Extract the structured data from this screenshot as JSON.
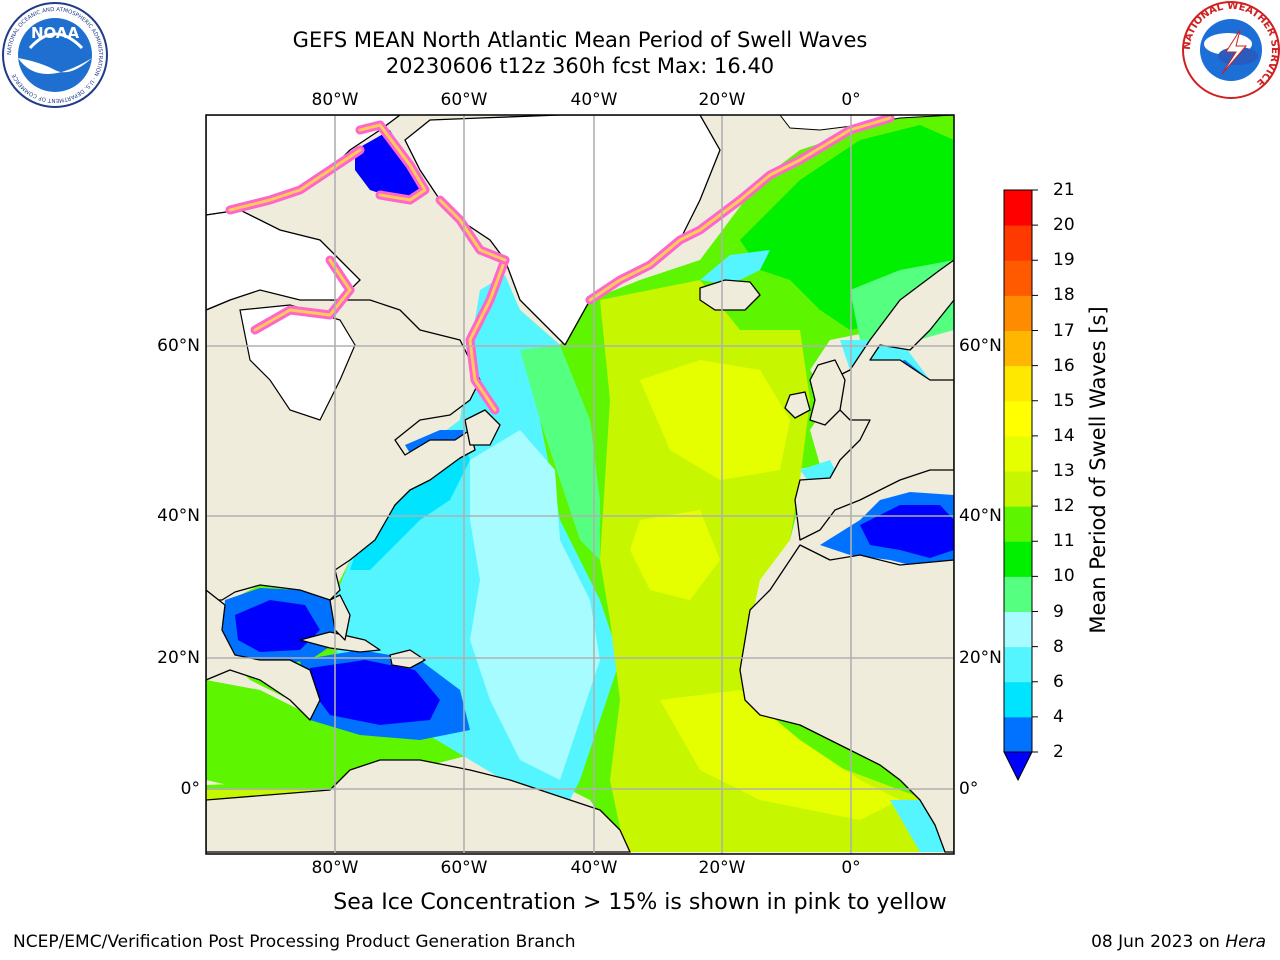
{
  "title": {
    "line1": "GEFS MEAN North Atlantic Mean Period of Swell Waves",
    "line2": "20230606 t12z 360h fcst   Max: 16.40"
  },
  "map": {
    "region": "North Atlantic",
    "longitude_labels": [
      "80°W",
      "60°W",
      "40°W",
      "20°W",
      "0°"
    ],
    "latitude_labels": [
      "60°N",
      "40°N",
      "20°N",
      "0°"
    ],
    "colors": {
      "land": "#efecdc",
      "ice_free": "#ffffff",
      "grid": "#b0b0b0",
      "coast": "#000000"
    }
  },
  "colorbar": {
    "title": "Mean Period of Swell Waves [s]",
    "tick_labels": [
      "2",
      "4",
      "6",
      "8",
      "9",
      "10",
      "11",
      "12",
      "13",
      "14",
      "15",
      "16",
      "17",
      "18",
      "19",
      "20",
      "21"
    ],
    "bin_colors": [
      "#0072ff",
      "#00e4ff",
      "#55f5ff",
      "#a6fcff",
      "#55ff80",
      "#00f000",
      "#5df500",
      "#c6f700",
      "#e6ff00",
      "#ffff00",
      "#ffe800",
      "#ffb600",
      "#ff8c00",
      "#ff5a00",
      "#ff3a00",
      "#ff0000"
    ],
    "under_color": "#0000ff",
    "extend": "min"
  },
  "footer": {
    "sea_ice_note": "Sea Ice Concentration > 15% is shown in pink to yellow",
    "credit": "NCEP/EMC/Verification Post Processing Product Generation Branch",
    "date": "08 Jun 2023 on ",
    "host": "Hera"
  },
  "logos": {
    "noaa": {
      "text": "NOAA",
      "ring": "NATIONAL OCEANIC AND ATMOSPHERIC ADMINISTRATION · U.S. DEPARTMENT OF COMMERCE"
    },
    "nws": {
      "ring": "NATIONAL WEATHER SERVICE"
    }
  }
}
